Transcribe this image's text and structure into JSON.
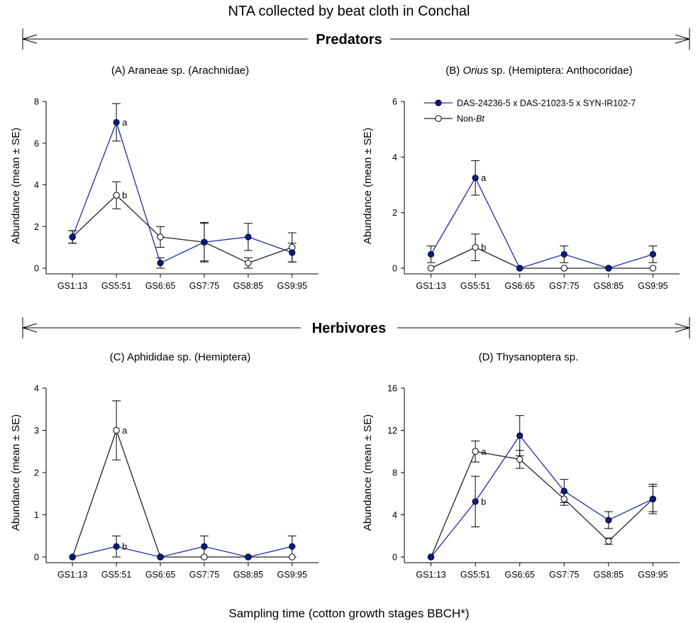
{
  "figure": {
    "title": "NTA collected by beat cloth in Conchal",
    "x_axis_label": "Sampling time (cotton growth stages BBCH*)",
    "sections": [
      "Predators",
      "Herbivores"
    ],
    "colors": {
      "bt": "#1f2aa8",
      "bt_fill": "#0a1a8c",
      "nonbt": "#222222",
      "axis": "#000000"
    }
  },
  "legend": {
    "bt_label": "DAS-24236-5 x DAS-21023-5 x SYN-IR102-7",
    "nonbt_prefix": "Non-",
    "nonbt_italic": "Bt"
  },
  "chart_data": [
    {
      "type": "line",
      "panel": "A",
      "title": "(A) Araneae sp. (Arachnidae)",
      "title_italic": "",
      "ylabel": "Abundance (mean ± SE)",
      "ylim": [
        0,
        8
      ],
      "yticks": [
        0,
        2,
        4,
        6,
        8
      ],
      "categories": [
        "GS1:13",
        "GS5:51",
        "GS6:65",
        "GS7:75",
        "GS8:85",
        "GS9:95"
      ],
      "series": [
        {
          "name": "DAS-24236-5 x DAS-21023-5 x SYN-IR102-7",
          "values": [
            1.5,
            7.0,
            0.25,
            1.25,
            1.5,
            0.75
          ],
          "se": [
            0.3,
            0.9,
            0.25,
            0.9,
            0.65,
            0.45
          ]
        },
        {
          "name": "Non-Bt",
          "values": [
            1.5,
            3.5,
            1.5,
            1.25,
            0.25,
            1.0
          ],
          "se": [
            0.3,
            0.65,
            0.5,
            0.95,
            0.25,
            0.7
          ]
        }
      ],
      "annotations": [
        {
          "text": "a",
          "series": 0,
          "index": 1
        },
        {
          "text": "b",
          "series": 1,
          "index": 1
        }
      ],
      "legend": false
    },
    {
      "type": "line",
      "panel": "B",
      "title": "(B) Orius sp. (Hemiptera: Anthocoridae)",
      "title_italic": "Orius",
      "ylabel": "Abundance (mean ± SE)",
      "ylim": [
        0,
        6
      ],
      "yticks": [
        0,
        2,
        4,
        6
      ],
      "categories": [
        "GS1:13",
        "GS5:51",
        "GS6:65",
        "GS7:75",
        "GS8:85",
        "GS9:95"
      ],
      "series": [
        {
          "name": "DAS-24236-5 x DAS-21023-5 x SYN-IR102-7",
          "values": [
            0.5,
            3.25,
            0,
            0.5,
            0,
            0.5
          ],
          "se": [
            0.3,
            0.62,
            0,
            0.3,
            0,
            0.3
          ]
        },
        {
          "name": "Non-Bt",
          "values": [
            0,
            0.75,
            0,
            0,
            0,
            0
          ],
          "se": [
            0,
            0.48,
            0,
            0,
            0,
            0
          ]
        }
      ],
      "annotations": [
        {
          "text": "a",
          "series": 0,
          "index": 1
        },
        {
          "text": "b",
          "series": 1,
          "index": 1
        }
      ],
      "legend": true
    },
    {
      "type": "line",
      "panel": "C",
      "title": "(C) Aphididae sp. (Hemiptera)",
      "title_italic": "",
      "ylabel": "Abundance (mean ± SE)",
      "ylim": [
        0,
        4
      ],
      "yticks": [
        0,
        1,
        2,
        3,
        4
      ],
      "categories": [
        "GS1:13",
        "GS5:51",
        "GS6:65",
        "GS7:75",
        "GS8:85",
        "GS9:95"
      ],
      "series": [
        {
          "name": "DAS-24236-5 x DAS-21023-5 x SYN-IR102-7",
          "values": [
            0,
            0.25,
            0,
            0.25,
            0,
            0.25
          ],
          "se": [
            0,
            0.25,
            0,
            0.25,
            0,
            0.25
          ]
        },
        {
          "name": "Non-Bt",
          "values": [
            0,
            3.0,
            0,
            0,
            0,
            0
          ],
          "se": [
            0,
            0.7,
            0,
            0,
            0,
            0
          ]
        }
      ],
      "annotations": [
        {
          "text": "a",
          "series": 1,
          "index": 1
        },
        {
          "text": "b",
          "series": 0,
          "index": 1
        }
      ],
      "legend": false
    },
    {
      "type": "line",
      "panel": "D",
      "title": "(D) Thysanoptera sp.",
      "title_italic": "",
      "ylabel": "Abundance (mean ± SE)",
      "ylim": [
        0,
        16
      ],
      "yticks": [
        0,
        4,
        8,
        12,
        16
      ],
      "categories": [
        "GS1:13",
        "GS5:51",
        "GS6:65",
        "GS7:75",
        "GS8:85",
        "GS9:95"
      ],
      "series": [
        {
          "name": "DAS-24236-5 x DAS-21023-5 x SYN-IR102-7",
          "values": [
            0,
            5.25,
            11.5,
            6.25,
            3.5,
            5.5
          ],
          "se": [
            0,
            2.4,
            1.9,
            1.1,
            0.8,
            1.4
          ]
        },
        {
          "name": "Non-Bt",
          "values": [
            0,
            10.0,
            9.25,
            5.5,
            1.5,
            5.5
          ],
          "se": [
            0,
            1.0,
            0.85,
            0.6,
            0.3,
            1.2
          ]
        }
      ],
      "annotations": [
        {
          "text": "a",
          "series": 1,
          "index": 1
        },
        {
          "text": "b",
          "series": 0,
          "index": 1
        }
      ],
      "legend": false
    }
  ]
}
